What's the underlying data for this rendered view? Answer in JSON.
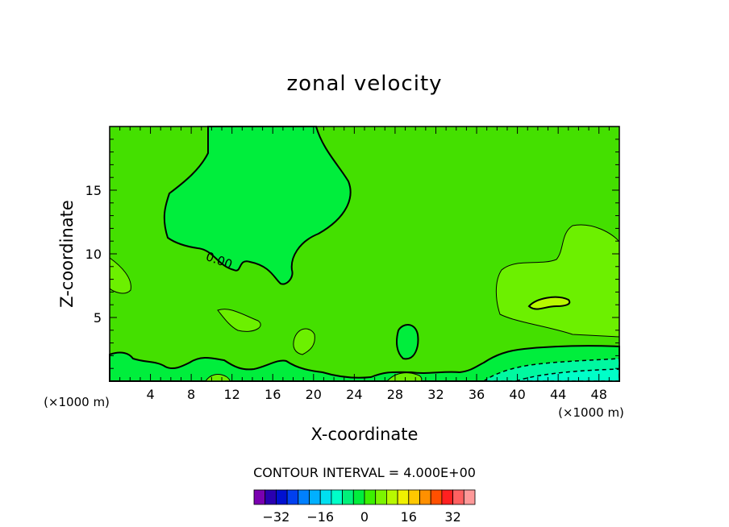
{
  "chart_data": {
    "type": "heatmap",
    "title": "zonal velocity",
    "xlabel": "X-coordinate",
    "ylabel": "Z-coordinate",
    "x_unit": "(×1000 m)",
    "xlim": [
      0,
      50
    ],
    "ylim": [
      0,
      20
    ],
    "x_ticks": [
      "4",
      "8",
      "12",
      "16",
      "20",
      "24",
      "28",
      "32",
      "36",
      "40",
      "44",
      "48"
    ],
    "y_ticks": [
      "5",
      "10",
      "15"
    ],
    "contour_interval_text": "CONTOUR INTERVAL = 4.000E+00",
    "contour_label": "0.00",
    "colorbar": {
      "levels": [
        -36,
        -32,
        -28,
        -24,
        -20,
        -16,
        -12,
        -8,
        -4,
        0,
        4,
        8,
        12,
        16,
        20,
        24,
        28,
        32,
        36
      ],
      "tick_labels": [
        "-32",
        "-16",
        "0",
        "16",
        "32"
      ],
      "colors": [
        "#7a00b0",
        "#2a00b0",
        "#0010d0",
        "#0040f0",
        "#0080ff",
        "#00b0ff",
        "#00e0f0",
        "#00ffc8",
        "#00f07a",
        "#00ee3c",
        "#3cf000",
        "#7cf400",
        "#b8f800",
        "#f0f000",
        "#ffc800",
        "#ff9000",
        "#ff5000",
        "#ff2020",
        "#ff6060",
        "#ff9999"
      ]
    },
    "regions": [
      {
        "value": "0 to 4",
        "color": "#44e000",
        "desc": "background"
      },
      {
        "value": "-4 to 0",
        "color": "#00ee3c",
        "desc": "upper-center cell"
      },
      {
        "value": "4 to 8",
        "color": "#6cf000",
        "desc": "right cell"
      },
      {
        "value": "-8 to -4",
        "color": "#00f8a0",
        "desc": "near surface right"
      }
    ]
  }
}
